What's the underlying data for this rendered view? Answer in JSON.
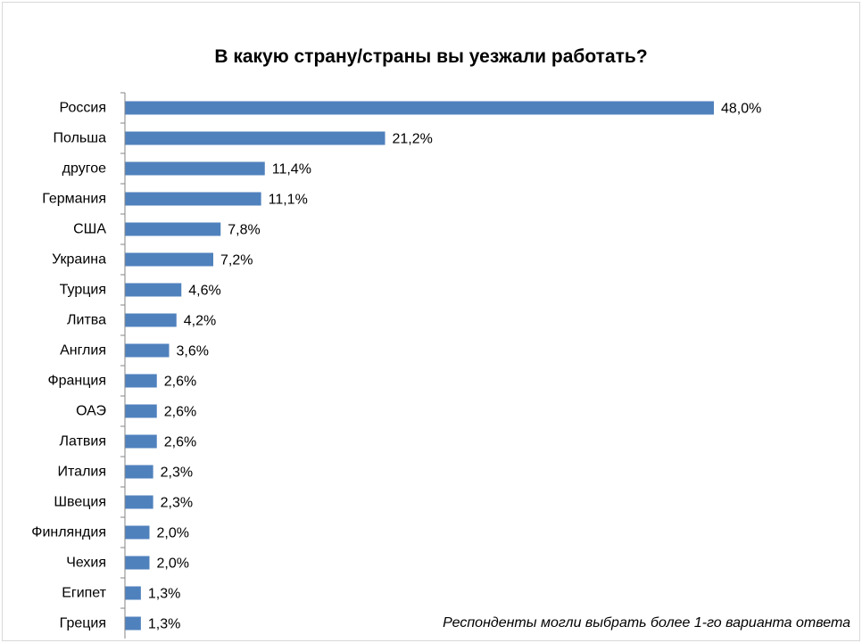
{
  "chart_data": {
    "type": "bar",
    "orientation": "horizontal",
    "title": "В какую страну/страны вы уезжали работать?",
    "xlabel": "",
    "ylabel": "",
    "categories": [
      "Россия",
      "Польша",
      "другое",
      "Германия",
      "США",
      "Украина",
      "Турция",
      "Литва",
      "Англия",
      "Франция",
      "ОАЭ",
      "Латвия",
      "Италия",
      "Швеция",
      "Финляндия",
      "Чехия",
      "Египет",
      "Греция"
    ],
    "values": [
      48.0,
      21.2,
      11.4,
      11.1,
      7.8,
      7.2,
      4.6,
      4.2,
      3.6,
      2.6,
      2.6,
      2.6,
      2.3,
      2.3,
      2.0,
      2.0,
      1.3,
      1.3
    ],
    "value_labels": [
      "48,0%",
      "21,2%",
      "11,4%",
      "11,1%",
      "7,8%",
      "7,2%",
      "4,6%",
      "4,2%",
      "3,6%",
      "2,6%",
      "2,6%",
      "2,6%",
      "2,3%",
      "2,3%",
      "2,0%",
      "2,0%",
      "1,3%",
      "1,3%"
    ],
    "unit": "%",
    "xlim": [
      0,
      48
    ],
    "grid": false,
    "legend": "none",
    "bar_color": "#4f81bd",
    "axis_color": "#868686",
    "text_color": "#000000",
    "annotation": "Респонденты могли выбрать более 1-го варианта ответа"
  }
}
